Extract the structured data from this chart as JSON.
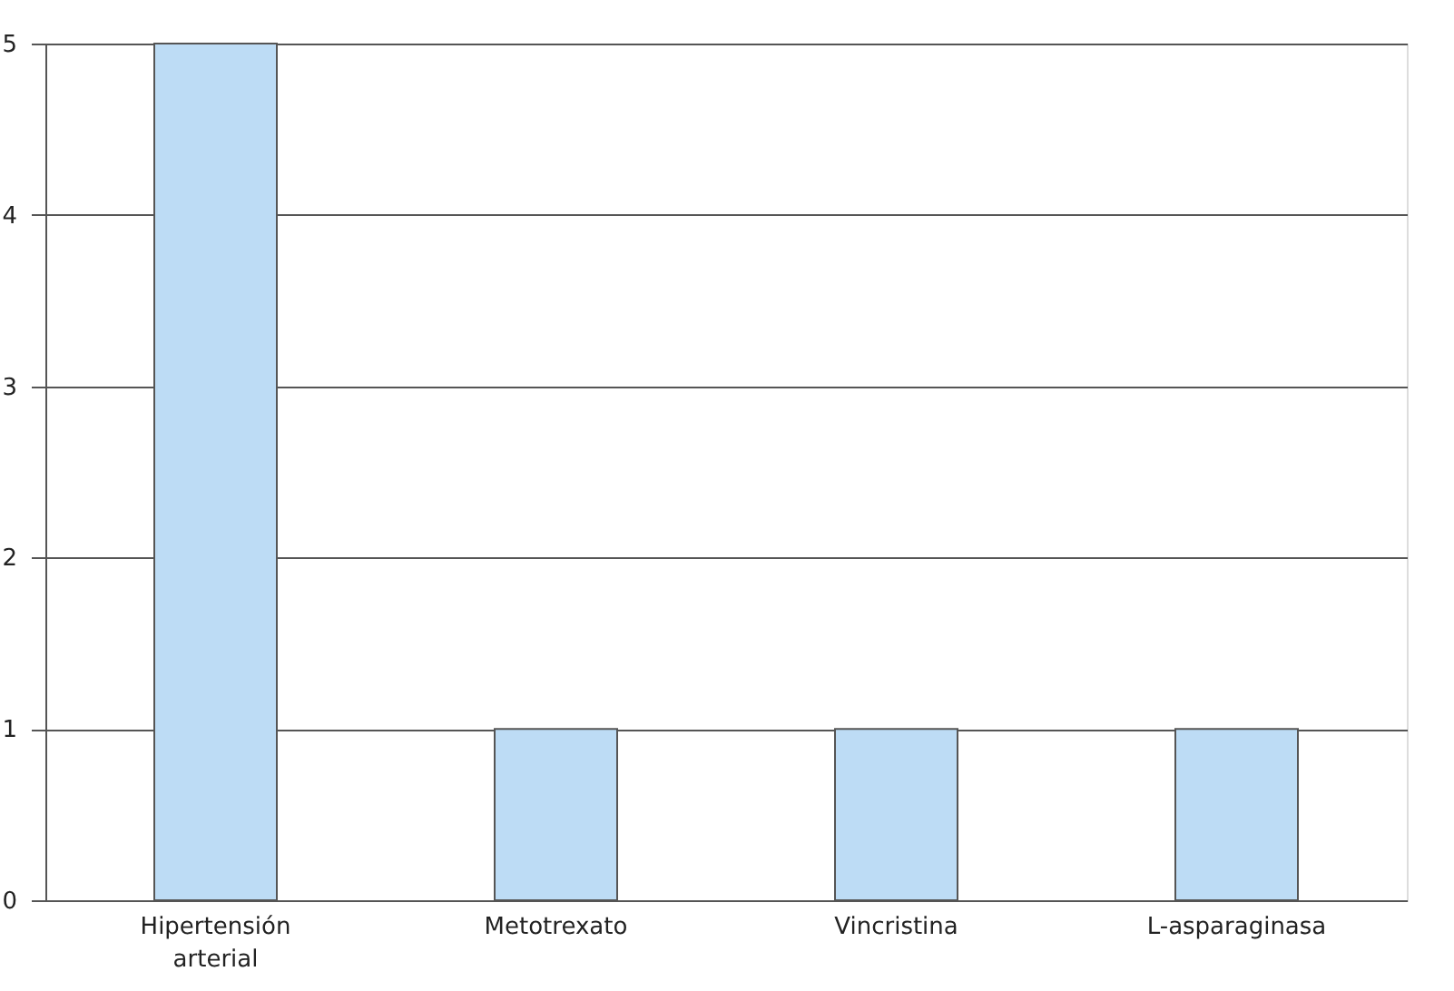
{
  "chart_data": {
    "type": "bar",
    "categories": [
      "Hipertensión arterial",
      "Metotrexato",
      "Vincristina",
      "L-asparaginasa"
    ],
    "values": [
      5,
      1,
      1,
      1
    ],
    "color": "#bddcf5",
    "ylim": [
      0,
      5
    ],
    "yticks": [
      0,
      1,
      2,
      3,
      4,
      5
    ],
    "grid": "y",
    "legend": false
  }
}
